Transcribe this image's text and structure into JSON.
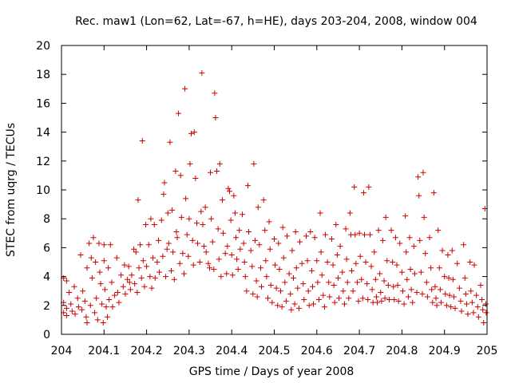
{
  "chart_data": {
    "type": "scatter",
    "title": "Rec. maw1 (Lon=62, Lat=-67, h=HE), days 203-204, 2008, window 004",
    "xlabel": "GPS time / Days of year 2008",
    "ylabel": "STEC from uqrg / TECUs",
    "xlim": [
      204,
      205
    ],
    "ylim": [
      0,
      20
    ],
    "xticks": [
      204,
      204.1,
      204.2,
      204.3,
      204.4,
      204.5,
      204.6,
      204.7,
      204.8,
      204.9,
      205
    ],
    "xtick_labels": [
      "204",
      "204.1",
      "204.2",
      "204.3",
      "204.4",
      "204.5",
      "204.6",
      "204.7",
      "204.8",
      "204.9",
      "205"
    ],
    "yticks": [
      0,
      2,
      4,
      6,
      8,
      10,
      12,
      14,
      16,
      18,
      20
    ],
    "ytick_labels": [
      "0",
      "2",
      "4",
      "6",
      "8",
      "10",
      "12",
      "14",
      "16",
      "18",
      "20"
    ],
    "grid": false,
    "marker": "plus",
    "marker_color": "#cc0000",
    "points": [
      [
        204.005,
        3.9
      ],
      [
        204.005,
        2.2
      ],
      [
        204.005,
        1.5
      ],
      [
        204.012,
        3.7
      ],
      [
        204.012,
        1.8
      ],
      [
        204.012,
        1.3
      ],
      [
        204.018,
        2.9
      ],
      [
        204.022,
        2.1
      ],
      [
        204.025,
        1.6
      ],
      [
        204.03,
        3.3
      ],
      [
        204.032,
        1.4
      ],
      [
        204.038,
        2.5
      ],
      [
        204.04,
        1.9
      ],
      [
        204.045,
        5.5
      ],
      [
        204.048,
        1.7
      ],
      [
        204.05,
        3.0
      ],
      [
        204.055,
        2.3
      ],
      [
        204.058,
        1.2
      ],
      [
        204.06,
        4.6
      ],
      [
        204.06,
        0.8
      ],
      [
        204.065,
        6.3
      ],
      [
        204.068,
        2.0
      ],
      [
        204.07,
        5.3
      ],
      [
        204.072,
        3.9
      ],
      [
        204.075,
        6.7
      ],
      [
        204.078,
        1.5
      ],
      [
        204.08,
        5.0
      ],
      [
        204.082,
        2.5
      ],
      [
        204.085,
        1.0
      ],
      [
        204.088,
        6.3
      ],
      [
        204.09,
        4.3
      ],
      [
        204.092,
        3.5
      ],
      [
        204.095,
        2.1
      ],
      [
        204.098,
        0.8
      ],
      [
        204.1,
        6.2
      ],
      [
        204.1,
        5.1
      ],
      [
        204.102,
        3.1
      ],
      [
        204.105,
        1.9
      ],
      [
        204.108,
        1.2
      ],
      [
        204.11,
        4.6
      ],
      [
        204.112,
        2.4
      ],
      [
        204.115,
        6.2
      ],
      [
        204.118,
        3.6
      ],
      [
        204.12,
        1.9
      ],
      [
        204.125,
        2.7
      ],
      [
        204.13,
        5.3
      ],
      [
        204.132,
        2.9
      ],
      [
        204.135,
        2.2
      ],
      [
        204.14,
        4.1
      ],
      [
        204.145,
        3.3
      ],
      [
        204.148,
        4.8
      ],
      [
        204.15,
        2.8
      ],
      [
        204.155,
        3.8
      ],
      [
        204.158,
        4.7
      ],
      [
        204.16,
        3.6
      ],
      [
        204.162,
        3.1
      ],
      [
        204.165,
        4.1
      ],
      [
        204.17,
        5.9
      ],
      [
        204.172,
        3.5
      ],
      [
        204.175,
        5.7
      ],
      [
        204.178,
        2.9
      ],
      [
        204.18,
        9.3
      ],
      [
        204.182,
        4.6
      ],
      [
        204.185,
        6.2
      ],
      [
        204.188,
        3.9
      ],
      [
        204.19,
        13.4
      ],
      [
        204.192,
        5.1
      ],
      [
        204.195,
        3.3
      ],
      [
        204.198,
        7.6
      ],
      [
        204.2,
        4.7
      ],
      [
        204.205,
        6.2
      ],
      [
        204.208,
        4.0
      ],
      [
        204.21,
        8.0
      ],
      [
        204.212,
        3.2
      ],
      [
        204.215,
        5.3
      ],
      [
        204.218,
        7.6
      ],
      [
        204.22,
        3.9
      ],
      [
        204.225,
        5.0
      ],
      [
        204.228,
        6.5
      ],
      [
        204.23,
        4.3
      ],
      [
        204.235,
        7.9
      ],
      [
        204.238,
        5.4
      ],
      [
        204.24,
        9.7
      ],
      [
        204.242,
        10.5
      ],
      [
        204.245,
        4.0
      ],
      [
        204.248,
        5.9
      ],
      [
        204.25,
        8.4
      ],
      [
        204.252,
        6.3
      ],
      [
        204.255,
        13.3
      ],
      [
        204.258,
        4.4
      ],
      [
        204.26,
        8.6
      ],
      [
        204.262,
        5.7
      ],
      [
        204.265,
        3.8
      ],
      [
        204.268,
        11.3
      ],
      [
        204.27,
        7.1
      ],
      [
        204.272,
        6.7
      ],
      [
        204.275,
        15.3
      ],
      [
        204.278,
        4.9
      ],
      [
        204.28,
        11.0
      ],
      [
        204.282,
        8.1
      ],
      [
        204.285,
        5.6
      ],
      [
        204.288,
        4.2
      ],
      [
        204.29,
        17.0
      ],
      [
        204.292,
        9.4
      ],
      [
        204.295,
        6.9
      ],
      [
        204.298,
        5.4
      ],
      [
        204.3,
        8.0
      ],
      [
        204.302,
        11.8
      ],
      [
        204.305,
        13.9
      ],
      [
        204.308,
        6.5
      ],
      [
        204.31,
        4.8
      ],
      [
        204.312,
        14.0
      ],
      [
        204.315,
        10.8
      ],
      [
        204.318,
        7.7
      ],
      [
        204.32,
        6.3
      ],
      [
        204.325,
        5.0
      ],
      [
        204.328,
        8.5
      ],
      [
        204.33,
        18.1
      ],
      [
        204.332,
        7.6
      ],
      [
        204.335,
        6.1
      ],
      [
        204.338,
        8.8
      ],
      [
        204.34,
        5.7
      ],
      [
        204.345,
        4.9
      ],
      [
        204.348,
        4.6
      ],
      [
        204.35,
        11.2
      ],
      [
        204.352,
        8.0
      ],
      [
        204.355,
        6.4
      ],
      [
        204.358,
        4.5
      ],
      [
        204.36,
        16.7
      ],
      [
        204.362,
        15.0
      ],
      [
        204.365,
        11.3
      ],
      [
        204.368,
        7.3
      ],
      [
        204.37,
        5.2
      ],
      [
        204.372,
        11.8
      ],
      [
        204.375,
        4.0
      ],
      [
        204.378,
        9.3
      ],
      [
        204.38,
        7.0
      ],
      [
        204.385,
        5.6
      ],
      [
        204.388,
        4.2
      ],
      [
        204.39,
        6.1
      ],
      [
        204.392,
        10.1
      ],
      [
        204.395,
        9.9
      ],
      [
        204.398,
        7.9
      ],
      [
        204.4,
        5.5
      ],
      [
        204.402,
        4.1
      ],
      [
        204.405,
        9.6
      ],
      [
        204.408,
        8.4
      ],
      [
        204.41,
        6.7
      ],
      [
        204.412,
        5.2
      ],
      [
        204.415,
        4.5
      ],
      [
        204.418,
        7.2
      ],
      [
        204.42,
        5.9
      ],
      [
        204.425,
        8.3
      ],
      [
        204.428,
        6.3
      ],
      [
        204.43,
        5.0
      ],
      [
        204.432,
        4.0
      ],
      [
        204.435,
        3.0
      ],
      [
        204.438,
        10.3
      ],
      [
        204.44,
        7.1
      ],
      [
        204.445,
        5.8
      ],
      [
        204.448,
        4.7
      ],
      [
        204.45,
        2.8
      ],
      [
        204.452,
        11.8
      ],
      [
        204.455,
        6.5
      ],
      [
        204.458,
        3.7
      ],
      [
        204.46,
        2.6
      ],
      [
        204.462,
        8.8
      ],
      [
        204.465,
        6.2
      ],
      [
        204.468,
        4.6
      ],
      [
        204.47,
        3.3
      ],
      [
        204.475,
        9.3
      ],
      [
        204.478,
        7.2
      ],
      [
        204.48,
        5.1
      ],
      [
        204.482,
        4.0
      ],
      [
        204.485,
        2.5
      ],
      [
        204.488,
        7.8
      ],
      [
        204.49,
        5.9
      ],
      [
        204.492,
        3.4
      ],
      [
        204.495,
        2.2
      ],
      [
        204.5,
        6.6
      ],
      [
        204.502,
        4.8
      ],
      [
        204.505,
        3.2
      ],
      [
        204.508,
        2.0
      ],
      [
        204.51,
        6.3
      ],
      [
        204.512,
        4.5
      ],
      [
        204.515,
        3.0
      ],
      [
        204.518,
        1.9
      ],
      [
        204.52,
        7.4
      ],
      [
        204.522,
        5.3
      ],
      [
        204.525,
        3.6
      ],
      [
        204.528,
        2.3
      ],
      [
        204.53,
        6.8
      ],
      [
        204.535,
        4.2
      ],
      [
        204.538,
        2.8
      ],
      [
        204.54,
        1.7
      ],
      [
        204.542,
        5.8
      ],
      [
        204.545,
        3.9
      ],
      [
        204.548,
        2.1
      ],
      [
        204.55,
        7.1
      ],
      [
        204.552,
        4.6
      ],
      [
        204.555,
        3.2
      ],
      [
        204.558,
        1.8
      ],
      [
        204.56,
        6.4
      ],
      [
        204.565,
        4.9
      ],
      [
        204.568,
        3.5
      ],
      [
        204.57,
        2.4
      ],
      [
        204.575,
        6.8
      ],
      [
        204.578,
        5.1
      ],
      [
        204.58,
        3.0
      ],
      [
        204.582,
        2.0
      ],
      [
        204.585,
        7.1
      ],
      [
        204.588,
        4.4
      ],
      [
        204.59,
        3.3
      ],
      [
        204.592,
        2.1
      ],
      [
        204.595,
        6.7
      ],
      [
        204.6,
        5.1
      ],
      [
        204.602,
        3.6
      ],
      [
        204.605,
        2.4
      ],
      [
        204.608,
        8.4
      ],
      [
        204.61,
        5.7
      ],
      [
        204.612,
        4.1
      ],
      [
        204.615,
        2.7
      ],
      [
        204.618,
        1.9
      ],
      [
        204.62,
        6.9
      ],
      [
        204.625,
        5.0
      ],
      [
        204.628,
        3.6
      ],
      [
        204.63,
        2.6
      ],
      [
        204.635,
        6.6
      ],
      [
        204.638,
        4.8
      ],
      [
        204.64,
        3.4
      ],
      [
        204.642,
        2.2
      ],
      [
        204.645,
        7.6
      ],
      [
        204.648,
        5.5
      ],
      [
        204.65,
        3.9
      ],
      [
        204.652,
        2.5
      ],
      [
        204.655,
        6.1
      ],
      [
        204.66,
        4.3
      ],
      [
        204.662,
        3.0
      ],
      [
        204.665,
        2.1
      ],
      [
        204.668,
        7.3
      ],
      [
        204.67,
        5.2
      ],
      [
        204.672,
        3.6
      ],
      [
        204.675,
        2.5
      ],
      [
        204.678,
        8.4
      ],
      [
        204.68,
        6.9
      ],
      [
        204.682,
        4.4
      ],
      [
        204.685,
        3.0
      ],
      [
        204.688,
        10.2
      ],
      [
        204.69,
        6.9
      ],
      [
        204.692,
        4.9
      ],
      [
        204.695,
        3.6
      ],
      [
        204.698,
        2.3
      ],
      [
        204.7,
        7.0
      ],
      [
        204.702,
        5.4
      ],
      [
        204.705,
        3.8
      ],
      [
        204.708,
        2.5
      ],
      [
        204.71,
        9.8
      ],
      [
        204.712,
        6.9
      ],
      [
        204.715,
        5.0
      ],
      [
        204.718,
        3.5
      ],
      [
        204.72,
        2.4
      ],
      [
        204.722,
        10.2
      ],
      [
        204.725,
        6.9
      ],
      [
        204.728,
        4.7
      ],
      [
        204.73,
        3.1
      ],
      [
        204.732,
        2.2
      ],
      [
        204.735,
        5.7
      ],
      [
        204.738,
        3.8
      ],
      [
        204.74,
        2.6
      ],
      [
        204.742,
        2.2
      ],
      [
        204.745,
        7.2
      ],
      [
        204.748,
        4.2
      ],
      [
        204.75,
        2.9
      ],
      [
        204.752,
        2.3
      ],
      [
        204.755,
        6.5
      ],
      [
        204.758,
        3.7
      ],
      [
        204.76,
        2.5
      ],
      [
        204.762,
        8.1
      ],
      [
        204.765,
        5.1
      ],
      [
        204.768,
        3.4
      ],
      [
        204.77,
        2.4
      ],
      [
        204.775,
        7.2
      ],
      [
        204.778,
        5.0
      ],
      [
        204.78,
        3.3
      ],
      [
        204.782,
        2.4
      ],
      [
        204.785,
        6.7
      ],
      [
        204.788,
        4.8
      ],
      [
        204.79,
        3.4
      ],
      [
        204.792,
        2.3
      ],
      [
        204.795,
        6.3
      ],
      [
        204.8,
        4.3
      ],
      [
        204.802,
        3.0
      ],
      [
        204.805,
        2.1
      ],
      [
        204.808,
        8.2
      ],
      [
        204.81,
        5.7
      ],
      [
        204.812,
        3.8
      ],
      [
        204.815,
        2.6
      ],
      [
        204.818,
        6.7
      ],
      [
        204.82,
        4.5
      ],
      [
        204.822,
        3.1
      ],
      [
        204.825,
        2.2
      ],
      [
        204.828,
        6.1
      ],
      [
        204.83,
        4.2
      ],
      [
        204.835,
        2.9
      ],
      [
        204.838,
        10.9
      ],
      [
        204.84,
        9.6
      ],
      [
        204.842,
        6.5
      ],
      [
        204.845,
        4.3
      ],
      [
        204.848,
        2.8
      ],
      [
        204.85,
        11.2
      ],
      [
        204.852,
        8.1
      ],
      [
        204.855,
        5.6
      ],
      [
        204.858,
        3.6
      ],
      [
        204.86,
        2.6
      ],
      [
        204.865,
        6.7
      ],
      [
        204.868,
        4.6
      ],
      [
        204.87,
        3.1
      ],
      [
        204.872,
        2.2
      ],
      [
        204.875,
        9.8
      ],
      [
        204.878,
        3.3
      ],
      [
        204.88,
        2.5
      ],
      [
        204.882,
        2.0
      ],
      [
        204.885,
        7.2
      ],
      [
        204.888,
        4.6
      ],
      [
        204.89,
        3.1
      ],
      [
        204.892,
        2.2
      ],
      [
        204.895,
        5.8
      ],
      [
        204.9,
        4.0
      ],
      [
        204.902,
        2.8
      ],
      [
        204.905,
        2.0
      ],
      [
        204.908,
        5.5
      ],
      [
        204.91,
        3.9
      ],
      [
        204.912,
        2.7
      ],
      [
        204.915,
        1.9
      ],
      [
        204.918,
        5.8
      ],
      [
        204.92,
        3.8
      ],
      [
        204.922,
        2.6
      ],
      [
        204.925,
        1.8
      ],
      [
        204.93,
        4.9
      ],
      [
        204.935,
        3.2
      ],
      [
        204.938,
        2.3
      ],
      [
        204.94,
        1.6
      ],
      [
        204.945,
        6.2
      ],
      [
        204.948,
        3.9
      ],
      [
        204.95,
        2.8
      ],
      [
        204.952,
        2.1
      ],
      [
        204.955,
        1.4
      ],
      [
        204.96,
        5.0
      ],
      [
        204.962,
        3.0
      ],
      [
        204.965,
        2.2
      ],
      [
        204.968,
        1.5
      ],
      [
        204.97,
        4.8
      ],
      [
        204.975,
        2.7
      ],
      [
        204.978,
        1.9
      ],
      [
        204.98,
        1.2
      ],
      [
        204.985,
        3.4
      ],
      [
        204.988,
        2.4
      ],
      [
        204.99,
        1.7
      ],
      [
        204.992,
        0.8
      ],
      [
        204.995,
        8.7
      ],
      [
        204.997,
        2.1
      ],
      [
        204.998,
        1.5
      ]
    ]
  }
}
